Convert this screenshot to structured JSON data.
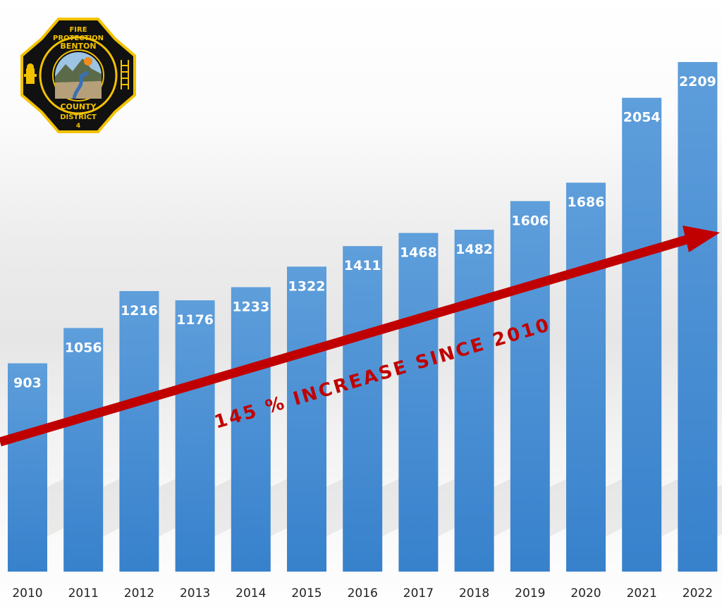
{
  "chart_data": {
    "type": "bar",
    "categories": [
      "2010",
      "2011",
      "2012",
      "2013",
      "2014",
      "2015",
      "2016",
      "2017",
      "2018",
      "2019",
      "2020",
      "2021",
      "2022"
    ],
    "values": [
      903,
      1056,
      1216,
      1176,
      1233,
      1322,
      1411,
      1468,
      1482,
      1606,
      1686,
      2054,
      2209
    ],
    "title": "",
    "xlabel": "",
    "ylabel": "",
    "ylim": [
      0,
      2209
    ],
    "grid": false,
    "legend": "none",
    "annotations": [
      "145 % INCREASE SINCE 2010"
    ],
    "colors": {
      "bar": "#4a8fd4",
      "bar_top": "#5c9bd9",
      "bar_bottom": "#3a80cc",
      "arrow": "#c00000"
    }
  },
  "logo": {
    "lines": [
      "FIRE",
      "PROTECTION",
      "BENTON",
      "COUNTY",
      "DISTRICT",
      "4"
    ],
    "icon": "maltese-cross-badge",
    "colors": {
      "cross": "#111111",
      "trim": "#f2c200"
    }
  }
}
